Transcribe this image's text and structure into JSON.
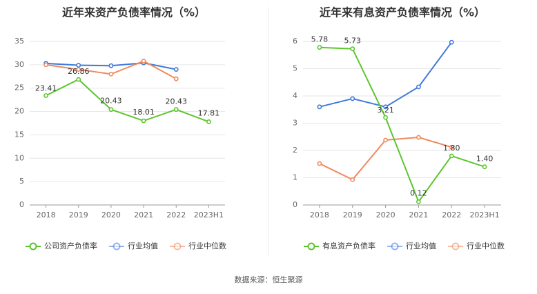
{
  "source": "数据来源：恒生聚源",
  "chart_data": [
    {
      "type": "line",
      "title": "近年来资产负债率情况（%）",
      "x": [
        "2018",
        "2019",
        "2020",
        "2021",
        "2022",
        "2023H1"
      ],
      "ylim": [
        0,
        35
      ],
      "yticks": [
        0,
        5,
        10,
        15,
        20,
        25,
        30,
        35
      ],
      "grid": true,
      "legend_position": "bottom",
      "series": [
        {
          "name": "公司资产负债率",
          "color": "#5cc62f",
          "values": [
            23.41,
            26.86,
            20.43,
            18.01,
            20.43,
            17.81
          ],
          "labels": [
            "23.41",
            "26.86",
            "20.43",
            "18.01",
            "20.43",
            "17.81"
          ]
        },
        {
          "name": "行业均值",
          "color": "#3f7bdc",
          "values": [
            30.3,
            29.9,
            29.8,
            30.4,
            29.0,
            null
          ],
          "labels": []
        },
        {
          "name": "行业中位数",
          "color": "#ef8a5f",
          "values": [
            30.0,
            29.0,
            28.0,
            30.8,
            27.0,
            null
          ],
          "labels": []
        }
      ]
    },
    {
      "type": "line",
      "title": "近年来有息资产负债率情况（%）",
      "x": [
        "2018",
        "2019",
        "2020",
        "2021",
        "2022",
        "2023H1"
      ],
      "ylim": [
        0,
        6
      ],
      "yticks": [
        0,
        1,
        2,
        3,
        4,
        5,
        6
      ],
      "grid": true,
      "legend_position": "bottom",
      "series": [
        {
          "name": "有息资产负债率",
          "color": "#5cc62f",
          "values": [
            5.78,
            5.73,
            3.21,
            0.12,
            1.8,
            1.4
          ],
          "labels": [
            "5.78",
            "5.73",
            "3.21",
            "0.12",
            "1.80",
            "1.40"
          ]
        },
        {
          "name": "行业均值",
          "color": "#3f7bdc",
          "values": [
            3.6,
            3.9,
            3.6,
            4.33,
            5.97,
            null
          ],
          "labels": []
        },
        {
          "name": "行业中位数",
          "color": "#ef8a5f",
          "values": [
            1.52,
            0.93,
            2.38,
            2.48,
            2.12,
            null
          ],
          "labels": []
        }
      ]
    }
  ]
}
